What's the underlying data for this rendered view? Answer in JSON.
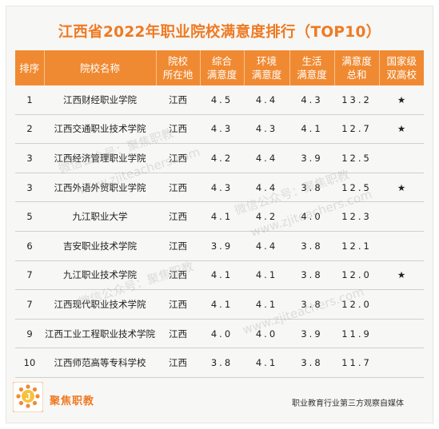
{
  "title": "江西省2022年职业院校满意度排行（TOP10）",
  "headers": [
    [
      "排序"
    ],
    [
      "院校名称"
    ],
    [
      "院校",
      "所在地"
    ],
    [
      "综合",
      "满意度"
    ],
    [
      "环境",
      "满意度"
    ],
    [
      "生活",
      "满意度"
    ],
    [
      "满意度",
      "总和"
    ],
    [
      "国家级",
      "双高校"
    ]
  ],
  "rows": [
    {
      "rank": "1",
      "name": "江西财经职业学院",
      "loc": "江西",
      "overall": "4.5",
      "env": "4.4",
      "life": "4.3",
      "total": "13.2",
      "star": "★"
    },
    {
      "rank": "2",
      "name": "江西交通职业技术学院",
      "loc": "江西",
      "overall": "4.3",
      "env": "4.3",
      "life": "4.1",
      "total": "12.7",
      "star": "★"
    },
    {
      "rank": "3",
      "name": "江西经济管理职业学院",
      "loc": "江西",
      "overall": "4.2",
      "env": "4.4",
      "life": "3.9",
      "total": "12.5",
      "star": ""
    },
    {
      "rank": "3",
      "name": "江西外语外贸职业学院",
      "loc": "江西",
      "overall": "4.3",
      "env": "4.4",
      "life": "3.8",
      "total": "12.5",
      "star": "★"
    },
    {
      "rank": "5",
      "name": "九江职业大学",
      "loc": "江西",
      "overall": "4.1",
      "env": "4.2",
      "life": "4.0",
      "total": "12.3",
      "star": ""
    },
    {
      "rank": "6",
      "name": "吉安职业技术学院",
      "loc": "江西",
      "overall": "3.9",
      "env": "4.4",
      "life": "3.8",
      "total": "12.1",
      "star": ""
    },
    {
      "rank": "7",
      "name": "九江职业技术学院",
      "loc": "江西",
      "overall": "4.1",
      "env": "4.1",
      "life": "3.8",
      "total": "12.0",
      "star": "★"
    },
    {
      "rank": "7",
      "name": "江西现代职业技术学院",
      "loc": "江西",
      "overall": "4.1",
      "env": "4.1",
      "life": "3.8",
      "total": "12.0",
      "star": ""
    },
    {
      "rank": "9",
      "name": "江西工业工程职业技术学院",
      "loc": "江西",
      "overall": "4.0",
      "env": "4.0",
      "life": "3.9",
      "total": "11.9",
      "star": ""
    },
    {
      "rank": "10",
      "name": "江西师范高等专科学校",
      "loc": "江西",
      "overall": "3.8",
      "env": "4.1",
      "life": "3.8",
      "total": "11.7",
      "star": ""
    }
  ],
  "watermarks": [
    "微信公众号：聚焦职教",
    "www.zjiteachers.com",
    "微信公众号：聚焦职教",
    "www.zjiteachers.com",
    "微信公众号：聚焦职教",
    "www.zjiteachers.com"
  ],
  "footer": {
    "logo_letter": "J",
    "brand": "聚焦职教",
    "tagline": "职业教育行业第三方观察自媒体"
  },
  "colors": {
    "accent": "#f08a32",
    "title": "#ef7a23"
  }
}
